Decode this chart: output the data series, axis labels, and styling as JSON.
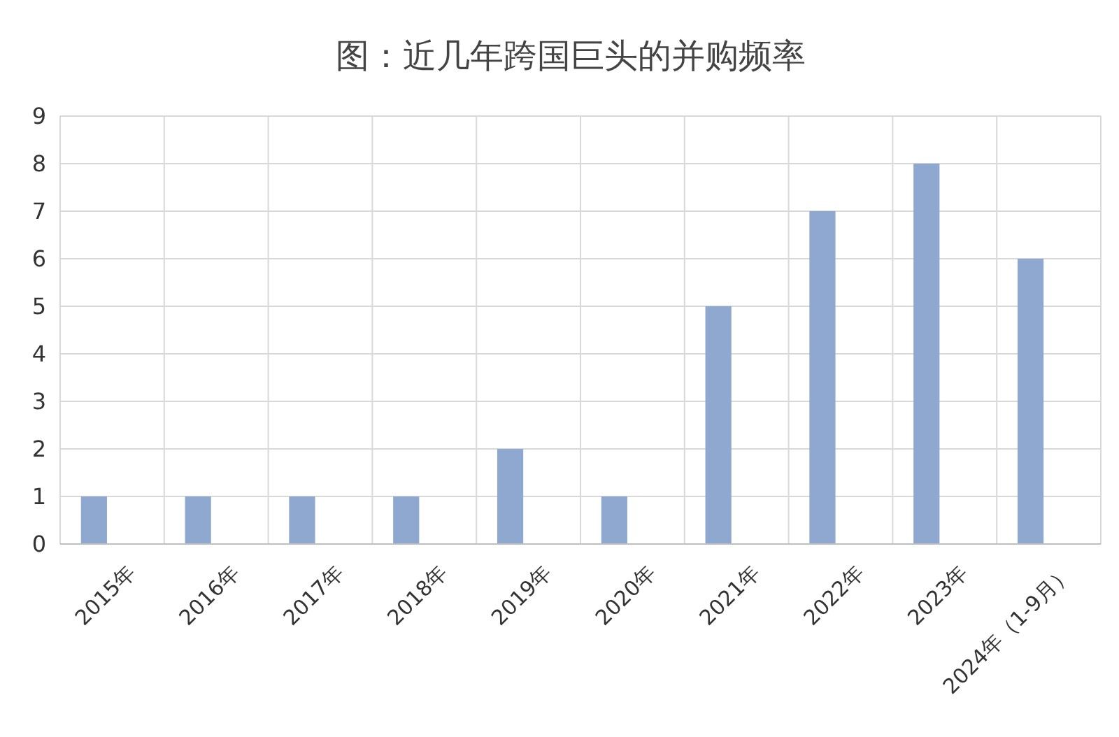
{
  "chart_data": {
    "type": "bar",
    "title": "图：近几年跨国巨头的并购频率",
    "categories": [
      "2015年",
      "2016年",
      "2017年",
      "2018年",
      "2019年",
      "2020年",
      "2021年",
      "2022年",
      "2023年",
      "2024年（1-9月）"
    ],
    "values": [
      1,
      1,
      1,
      1,
      2,
      1,
      5,
      7,
      8,
      6
    ],
    "color": "#8fa8cf",
    "ylim": [
      0,
      9
    ],
    "yticks": [
      0,
      1,
      2,
      3,
      4,
      5,
      6,
      7,
      8,
      9
    ],
    "grid": true
  }
}
